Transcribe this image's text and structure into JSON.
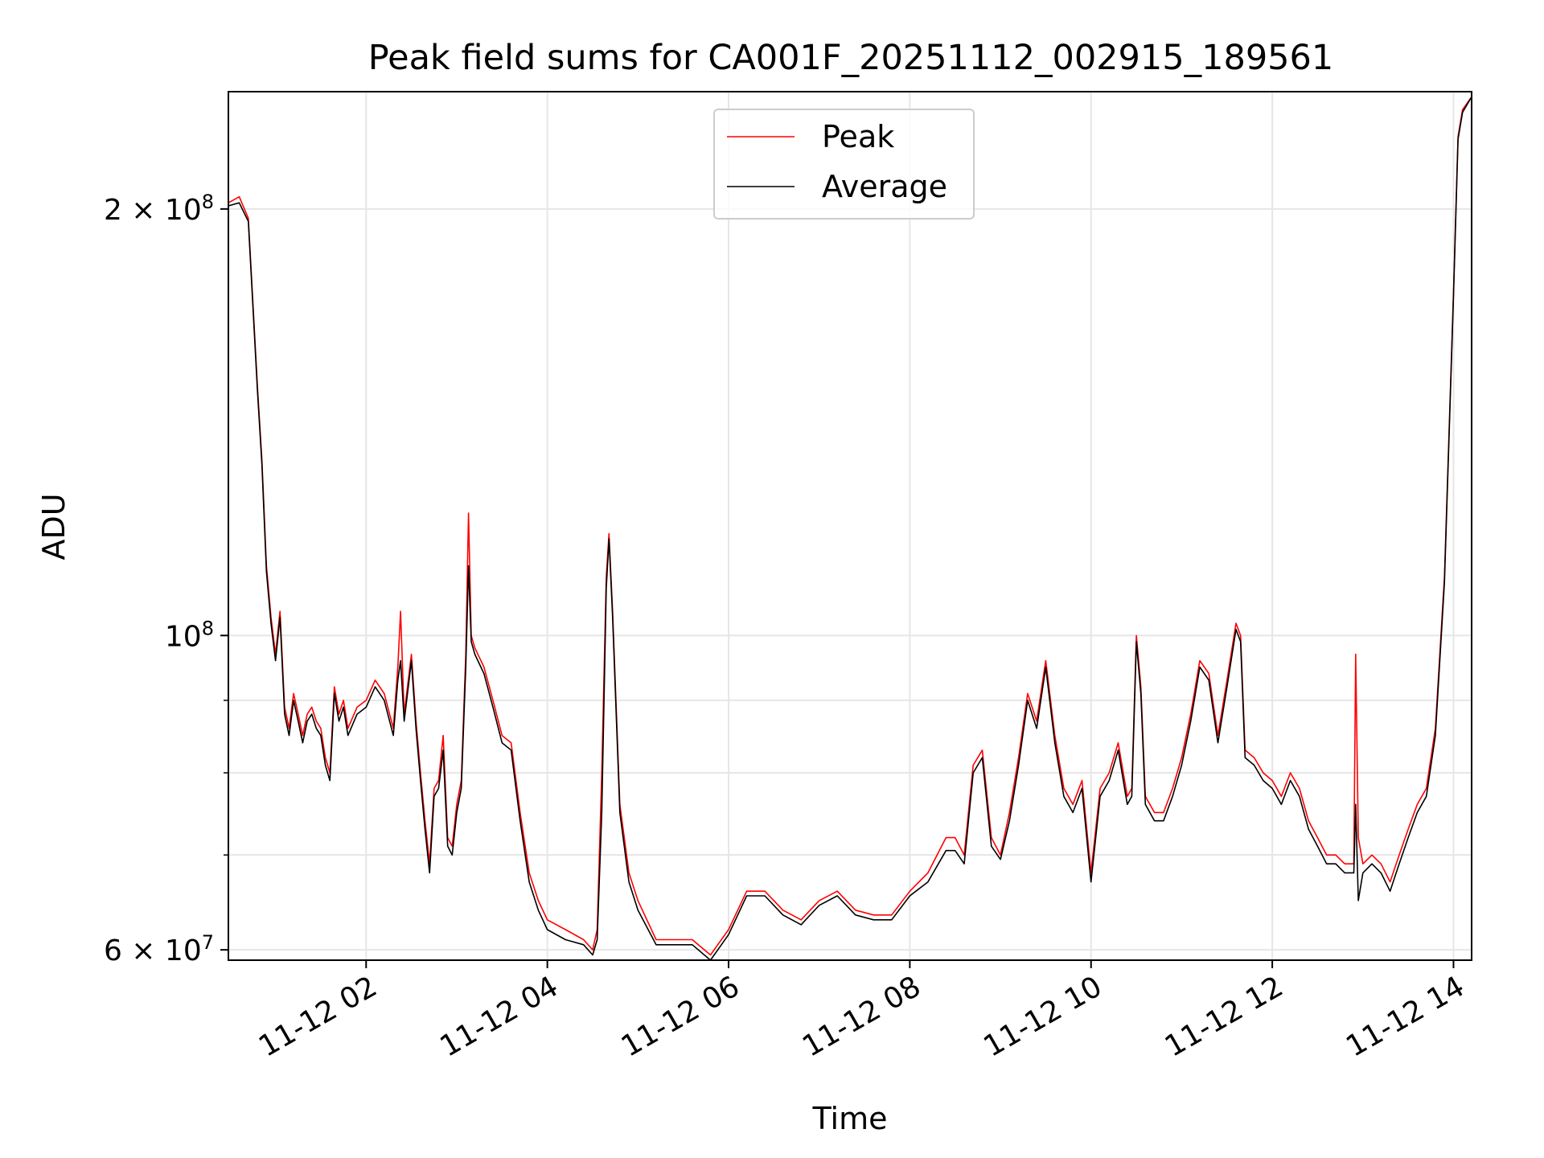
{
  "chart_data": {
    "type": "line",
    "title": "Peak field sums for CA001F_20251112_002915_189561",
    "xlabel": "Time",
    "ylabel": "ADU",
    "yscale": "log",
    "grid": true,
    "legend_position": "top-center",
    "x_unit": "hours since 2025-11-12 00:00",
    "xlim": [
      0.48,
      14.2
    ],
    "ylim": [
      59000000,
      242000000
    ],
    "x_ticks": [
      {
        "value": 2,
        "label": "11-12 02"
      },
      {
        "value": 4,
        "label": "11-12 04"
      },
      {
        "value": 6,
        "label": "11-12 06"
      },
      {
        "value": 8,
        "label": "11-12 08"
      },
      {
        "value": 10,
        "label": "11-12 10"
      },
      {
        "value": 12,
        "label": "11-12 12"
      },
      {
        "value": 14,
        "label": "11-12 14"
      }
    ],
    "y_major_ticks": [
      {
        "value": 60000000,
        "base": "6 × 10",
        "exp": "7"
      },
      {
        "value": 100000000,
        "base": "10",
        "exp": "8"
      },
      {
        "value": 200000000,
        "base": "2 × 10",
        "exp": "8"
      }
    ],
    "y_minor_ticks": [
      70000000,
      80000000,
      90000000
    ],
    "series": [
      {
        "name": "Peak",
        "color": "#ff0000",
        "x": [
          0.48,
          0.6,
          0.7,
          0.8,
          0.85,
          0.9,
          0.95,
          1.0,
          1.05,
          1.1,
          1.15,
          1.2,
          1.25,
          1.3,
          1.35,
          1.4,
          1.45,
          1.5,
          1.55,
          1.6,
          1.65,
          1.7,
          1.75,
          1.8,
          1.9,
          2.0,
          2.1,
          2.2,
          2.3,
          2.35,
          2.38,
          2.42,
          2.5,
          2.55,
          2.6,
          2.65,
          2.7,
          2.75,
          2.8,
          2.85,
          2.9,
          2.95,
          3.0,
          3.05,
          3.1,
          3.13,
          3.16,
          3.2,
          3.3,
          3.4,
          3.5,
          3.6,
          3.7,
          3.8,
          3.9,
          4.0,
          4.2,
          4.4,
          4.5,
          4.55,
          4.6,
          4.65,
          4.68,
          4.72,
          4.8,
          4.9,
          5.0,
          5.2,
          5.4,
          5.6,
          5.8,
          6.0,
          6.2,
          6.4,
          6.6,
          6.8,
          7.0,
          7.2,
          7.4,
          7.6,
          7.8,
          8.0,
          8.2,
          8.4,
          8.5,
          8.6,
          8.7,
          8.8,
          8.9,
          9.0,
          9.1,
          9.2,
          9.3,
          9.4,
          9.5,
          9.6,
          9.7,
          9.8,
          9.9,
          10.0,
          10.1,
          10.2,
          10.3,
          10.4,
          10.45,
          10.5,
          10.55,
          10.6,
          10.7,
          10.8,
          10.9,
          11.0,
          11.1,
          11.2,
          11.3,
          11.4,
          11.5,
          11.6,
          11.65,
          11.7,
          11.8,
          11.9,
          12.0,
          12.1,
          12.2,
          12.3,
          12.4,
          12.5,
          12.6,
          12.7,
          12.8,
          12.9,
          12.92,
          12.95,
          13.0,
          13.1,
          13.2,
          13.3,
          13.4,
          13.5,
          13.6,
          13.7,
          13.8,
          13.9,
          14.0,
          14.05,
          14.1,
          14.2
        ],
        "values": [
          202000000,
          204000000,
          197000000,
          150000000,
          133000000,
          112000000,
          103000000,
          97000000,
          104000000,
          89000000,
          86000000,
          91000000,
          88000000,
          85000000,
          88000000,
          89000000,
          87000000,
          86000000,
          82000000,
          80000000,
          92000000,
          88000000,
          90000000,
          86000000,
          89000000,
          90000000,
          93000000,
          91000000,
          86000000,
          95000000,
          104000000,
          88000000,
          97000000,
          87000000,
          80000000,
          74000000,
          69000000,
          78000000,
          79000000,
          85000000,
          72000000,
          71000000,
          76000000,
          79000000,
          97000000,
          122000000,
          100000000,
          98000000,
          95000000,
          90000000,
          85000000,
          84000000,
          75000000,
          68000000,
          65000000,
          63000000,
          62000000,
          61000000,
          60000000,
          62000000,
          80000000,
          110000000,
          118000000,
          104000000,
          76000000,
          68000000,
          65000000,
          61000000,
          61000000,
          61000000,
          59500000,
          62000000,
          66000000,
          66000000,
          64000000,
          63000000,
          65000000,
          66000000,
          64000000,
          63500000,
          63500000,
          66000000,
          68000000,
          72000000,
          72000000,
          70000000,
          81000000,
          83000000,
          72000000,
          70000000,
          75000000,
          82000000,
          91000000,
          87000000,
          96000000,
          85000000,
          78000000,
          76000000,
          79000000,
          68000000,
          78000000,
          80000000,
          84000000,
          77000000,
          78000000,
          100000000,
          92000000,
          77000000,
          75000000,
          75000000,
          78000000,
          82000000,
          88000000,
          96000000,
          94000000,
          85000000,
          93000000,
          102000000,
          100000000,
          83000000,
          82000000,
          80000000,
          79000000,
          77000000,
          80000000,
          78000000,
          74000000,
          72000000,
          70000000,
          70000000,
          69000000,
          69000000,
          97000000,
          72000000,
          69000000,
          70000000,
          69000000,
          67000000,
          70000000,
          73000000,
          76000000,
          78000000,
          86000000,
          110000000,
          175000000,
          225000000,
          235000000,
          240000000
        ]
      },
      {
        "name": "Average",
        "color": "#000000",
        "x": [
          0.48,
          0.6,
          0.7,
          0.8,
          0.85,
          0.9,
          0.95,
          1.0,
          1.05,
          1.1,
          1.15,
          1.2,
          1.25,
          1.3,
          1.35,
          1.4,
          1.45,
          1.5,
          1.55,
          1.6,
          1.65,
          1.7,
          1.75,
          1.8,
          1.9,
          2.0,
          2.1,
          2.2,
          2.3,
          2.35,
          2.38,
          2.42,
          2.5,
          2.55,
          2.6,
          2.65,
          2.7,
          2.75,
          2.8,
          2.85,
          2.9,
          2.95,
          3.0,
          3.05,
          3.1,
          3.13,
          3.16,
          3.2,
          3.3,
          3.4,
          3.5,
          3.6,
          3.7,
          3.8,
          3.9,
          4.0,
          4.2,
          4.4,
          4.5,
          4.55,
          4.6,
          4.65,
          4.68,
          4.72,
          4.8,
          4.9,
          5.0,
          5.2,
          5.4,
          5.6,
          5.8,
          6.0,
          6.2,
          6.4,
          6.6,
          6.8,
          7.0,
          7.2,
          7.4,
          7.6,
          7.8,
          8.0,
          8.2,
          8.4,
          8.5,
          8.6,
          8.7,
          8.8,
          8.9,
          9.0,
          9.1,
          9.2,
          9.3,
          9.4,
          9.5,
          9.6,
          9.7,
          9.8,
          9.9,
          10.0,
          10.1,
          10.2,
          10.3,
          10.4,
          10.45,
          10.5,
          10.55,
          10.6,
          10.7,
          10.8,
          10.9,
          11.0,
          11.1,
          11.2,
          11.3,
          11.4,
          11.5,
          11.6,
          11.65,
          11.7,
          11.8,
          11.9,
          12.0,
          12.1,
          12.2,
          12.3,
          12.4,
          12.5,
          12.6,
          12.7,
          12.8,
          12.9,
          12.92,
          12.95,
          13.0,
          13.1,
          13.2,
          13.3,
          13.4,
          13.5,
          13.6,
          13.7,
          13.8,
          13.9,
          14.0,
          14.05,
          14.1,
          14.2
        ],
        "values": [
          201000000,
          202000000,
          196000000,
          149000000,
          132000000,
          111000000,
          102000000,
          96000000,
          103000000,
          88000000,
          85000000,
          90000000,
          87000000,
          84000000,
          87000000,
          88000000,
          86000000,
          85000000,
          81000000,
          79000000,
          91000000,
          87000000,
          89000000,
          85000000,
          88000000,
          89000000,
          92000000,
          90000000,
          85000000,
          93000000,
          96000000,
          87000000,
          96000000,
          86000000,
          79000000,
          73000000,
          68000000,
          77000000,
          78000000,
          83000000,
          71000000,
          70000000,
          75000000,
          78000000,
          95000000,
          112000000,
          99000000,
          97000000,
          94000000,
          89000000,
          84000000,
          83000000,
          74000000,
          67000000,
          64000000,
          62000000,
          61000000,
          60500000,
          59500000,
          61000000,
          75000000,
          108000000,
          117000000,
          103000000,
          75000000,
          67000000,
          64000000,
          60500000,
          60500000,
          60500000,
          59000000,
          61500000,
          65500000,
          65500000,
          63500000,
          62500000,
          64500000,
          65500000,
          63500000,
          63000000,
          63000000,
          65500000,
          67000000,
          70500000,
          70500000,
          69000000,
          80000000,
          82000000,
          71000000,
          69500000,
          74000000,
          81000000,
          90000000,
          86000000,
          95000000,
          84000000,
          77000000,
          75000000,
          78000000,
          67000000,
          77000000,
          79000000,
          83000000,
          76000000,
          77000000,
          99000000,
          91000000,
          76000000,
          74000000,
          74000000,
          77000000,
          81000000,
          87000000,
          95000000,
          93000000,
          84000000,
          92000000,
          101000000,
          99000000,
          82000000,
          81000000,
          79000000,
          78000000,
          76000000,
          79000000,
          77000000,
          73000000,
          71000000,
          69000000,
          69000000,
          68000000,
          68000000,
          76000000,
          65000000,
          68000000,
          69000000,
          68000000,
          66000000,
          69000000,
          72000000,
          75000000,
          77000000,
          85000000,
          109000000,
          174000000,
          224000000,
          234000000,
          240000000
        ]
      }
    ]
  }
}
